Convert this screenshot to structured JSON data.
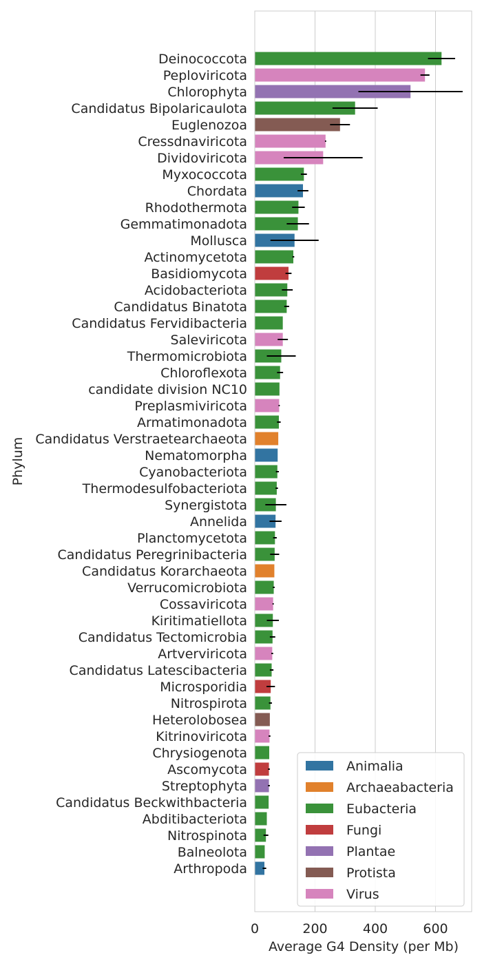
{
  "chart_data": {
    "type": "bar",
    "orientation": "horizontal",
    "xlabel": "Average G4 Density (per Mb)",
    "ylabel": "Phylum",
    "xlim": [
      0,
      720
    ],
    "xticks": [
      0,
      200,
      400,
      600
    ],
    "grid": "vertical",
    "legend_position": "bottom-right",
    "colors": {
      "Animalia": "#3274a1",
      "Archaeabacteria": "#e1812c",
      "Eubacteria": "#3a923a",
      "Fungi": "#c03d3e",
      "Plantae": "#9372b2",
      "Protista": "#845b53",
      "Virus": "#d684bd"
    },
    "legend": [
      "Animalia",
      "Archaeabacteria",
      "Eubacteria",
      "Fungi",
      "Plantae",
      "Protista",
      "Virus"
    ],
    "bars": [
      {
        "label": "Deinococcota",
        "kingdom": "Eubacteria",
        "value": 620,
        "err": 45
      },
      {
        "label": "Peploviricota",
        "kingdom": "Virus",
        "value": 565,
        "err": 15
      },
      {
        "label": "Chlorophyta",
        "kingdom": "Plantae",
        "value": 517,
        "err": 173
      },
      {
        "label": "Candidatus Bipolaricaulota",
        "kingdom": "Eubacteria",
        "value": 333,
        "err": 75
      },
      {
        "label": "Euglenozoa",
        "kingdom": "Protista",
        "value": 283,
        "err": 33
      },
      {
        "label": "Cressdnaviricota",
        "kingdom": "Virus",
        "value": 235,
        "err": 2
      },
      {
        "label": "Dividoviricota",
        "kingdom": "Virus",
        "value": 227,
        "err": 131
      },
      {
        "label": "Myxococcota",
        "kingdom": "Eubacteria",
        "value": 163,
        "err": 10
      },
      {
        "label": "Chordata",
        "kingdom": "Animalia",
        "value": 160,
        "err": 18
      },
      {
        "label": "Rhodothermota",
        "kingdom": "Eubacteria",
        "value": 145,
        "err": 21
      },
      {
        "label": "Gemmatimonadota",
        "kingdom": "Eubacteria",
        "value": 143,
        "err": 37
      },
      {
        "label": "Mollusca",
        "kingdom": "Animalia",
        "value": 132,
        "err": 80
      },
      {
        "label": "Actinomycetota",
        "kingdom": "Eubacteria",
        "value": 128,
        "err": 3
      },
      {
        "label": "Basidiomycota",
        "kingdom": "Fungi",
        "value": 112,
        "err": 10
      },
      {
        "label": "Acidobacteriota",
        "kingdom": "Eubacteria",
        "value": 108,
        "err": 18
      },
      {
        "label": "Candidatus Binatota",
        "kingdom": "Eubacteria",
        "value": 106,
        "err": 8
      },
      {
        "label": "Candidatus Fervidibacteria",
        "kingdom": "Eubacteria",
        "value": 93,
        "err": 0
      },
      {
        "label": "Saleviricota",
        "kingdom": "Virus",
        "value": 93,
        "err": 17
      },
      {
        "label": "Thermomicrobiota",
        "kingdom": "Eubacteria",
        "value": 88,
        "err": 48
      },
      {
        "label": "Chloroflexota",
        "kingdom": "Eubacteria",
        "value": 84,
        "err": 10
      },
      {
        "label": "candidate division NC10",
        "kingdom": "Eubacteria",
        "value": 82,
        "err": 0
      },
      {
        "label": "Preplasmiviricota",
        "kingdom": "Virus",
        "value": 81,
        "err": 2
      },
      {
        "label": "Armatimonadota",
        "kingdom": "Eubacteria",
        "value": 80,
        "err": 6
      },
      {
        "label": "Candidatus Verstraetearchaeota",
        "kingdom": "Archaeabacteria",
        "value": 78,
        "err": 0
      },
      {
        "label": "Nematomorpha",
        "kingdom": "Animalia",
        "value": 76,
        "err": 0
      },
      {
        "label": "Cyanobacteriota",
        "kingdom": "Eubacteria",
        "value": 75,
        "err": 5
      },
      {
        "label": "Thermodesulfobacteriota",
        "kingdom": "Eubacteria",
        "value": 73,
        "err": 4
      },
      {
        "label": "Synergistota",
        "kingdom": "Eubacteria",
        "value": 70,
        "err": 35
      },
      {
        "label": "Annelida",
        "kingdom": "Animalia",
        "value": 69,
        "err": 20
      },
      {
        "label": "Planctomycetota",
        "kingdom": "Eubacteria",
        "value": 67,
        "err": 6
      },
      {
        "label": "Candidatus Peregrinibacteria",
        "kingdom": "Eubacteria",
        "value": 66,
        "err": 15
      },
      {
        "label": "Candidatus Korarchaeota",
        "kingdom": "Archaeabacteria",
        "value": 65,
        "err": 0
      },
      {
        "label": "Verrucomicrobiota",
        "kingdom": "Eubacteria",
        "value": 63,
        "err": 3
      },
      {
        "label": "Cossaviricota",
        "kingdom": "Virus",
        "value": 61,
        "err": 2
      },
      {
        "label": "Kiritimatiellota",
        "kingdom": "Eubacteria",
        "value": 60,
        "err": 20
      },
      {
        "label": "Candidatus Tectomicrobia",
        "kingdom": "Eubacteria",
        "value": 59,
        "err": 9
      },
      {
        "label": "Artverviricota",
        "kingdom": "Virus",
        "value": 58,
        "err": 3
      },
      {
        "label": "Candidatus Latescibacteria",
        "kingdom": "Eubacteria",
        "value": 56,
        "err": 6
      },
      {
        "label": "Microsporidia",
        "kingdom": "Fungi",
        "value": 53,
        "err": 14
      },
      {
        "label": "Nitrospirota",
        "kingdom": "Eubacteria",
        "value": 52,
        "err": 5
      },
      {
        "label": "Heterolobosea",
        "kingdom": "Protista",
        "value": 50,
        "err": 0
      },
      {
        "label": "Kitrinoviricota",
        "kingdom": "Virus",
        "value": 49,
        "err": 3
      },
      {
        "label": "Chrysiogenota",
        "kingdom": "Eubacteria",
        "value": 48,
        "err": 0
      },
      {
        "label": "Ascomycota",
        "kingdom": "Fungi",
        "value": 47,
        "err": 3
      },
      {
        "label": "Streptophyta",
        "kingdom": "Plantae",
        "value": 47,
        "err": 3
      },
      {
        "label": "Candidatus Beckwithbacteria",
        "kingdom": "Eubacteria",
        "value": 46,
        "err": 0
      },
      {
        "label": "Abditibacteriota",
        "kingdom": "Eubacteria",
        "value": 40,
        "err": 0
      },
      {
        "label": "Nitrospinota",
        "kingdom": "Eubacteria",
        "value": 37,
        "err": 8
      },
      {
        "label": "Balneolota",
        "kingdom": "Eubacteria",
        "value": 33,
        "err": 0
      },
      {
        "label": "Arthropoda",
        "kingdom": "Animalia",
        "value": 32,
        "err": 6
      }
    ]
  }
}
